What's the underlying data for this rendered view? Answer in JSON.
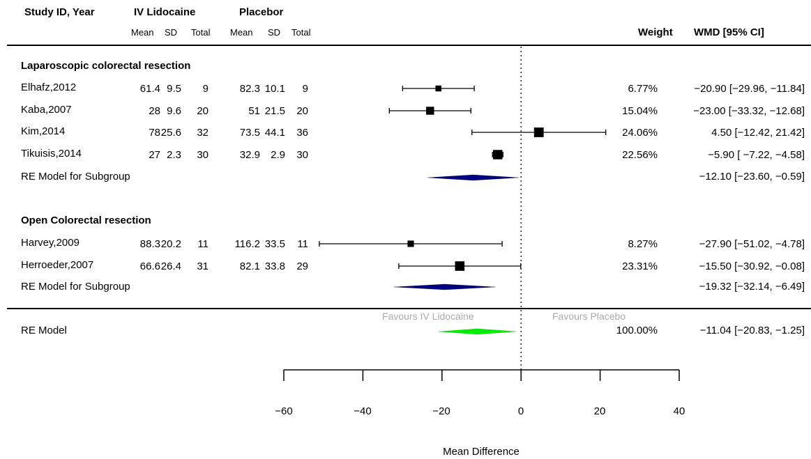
{
  "header": {
    "study_col": "Study ID, Year",
    "group1": "IV Lidocaine",
    "group2": "Placebor",
    "sub_mean": "Mean",
    "sub_sd": "SD",
    "sub_total": "Total",
    "weight_col": "Weight",
    "effect_col": "WMD [95% CI]"
  },
  "chart_data": {
    "type": "forest",
    "xlabel": "Mean Difference",
    "xlim": [
      -60,
      40
    ],
    "xticks": [
      "−60",
      "−40",
      "−20",
      "0",
      "20",
      "40"
    ],
    "reference_line": 0,
    "favours_left": "Favours IV Lidocaine",
    "favours_right": "Favours Placebo",
    "subgroups": [
      {
        "title": "Laparoscopic colorectal resection",
        "studies": [
          {
            "name": "Elhafz,2012",
            "m1": "61.4",
            "sd1": "9.5",
            "n1": "9",
            "m2": "82.3",
            "sd2": "10.1",
            "n2": "9",
            "weight": "6.77%",
            "ci_text": "−20.90 [−29.96, −11.84]",
            "est": -20.9,
            "lo": -29.96,
            "hi": -11.84,
            "w": 6.77
          },
          {
            "name": "Kaba,2007",
            "m1": "28",
            "sd1": "9.6",
            "n1": "20",
            "m2": "51",
            "sd2": "21.5",
            "n2": "20",
            "weight": "15.04%",
            "ci_text": "−23.00 [−33.32, −12.68]",
            "est": -23.0,
            "lo": -33.32,
            "hi": -12.68,
            "w": 15.04
          },
          {
            "name": "Kim,2014",
            "m1": "78",
            "sd1": "25.6",
            "n1": "32",
            "m2": "73.5",
            "sd2": "44.1",
            "n2": "36",
            "weight": "24.06%",
            "ci_text": "4.50 [−12.42, 21.42]",
            "est": 4.5,
            "lo": -12.42,
            "hi": 21.42,
            "w": 24.06
          },
          {
            "name": "Tikuisis,2014",
            "m1": "27",
            "sd1": "2.3",
            "n1": "30",
            "m2": "32.9",
            "sd2": "2.9",
            "n2": "30",
            "weight": "22.56%",
            "ci_text": "−5.90 [ −7.22, −4.58]",
            "est": -5.9,
            "lo": -7.22,
            "hi": -4.58,
            "w": 22.56
          }
        ],
        "summary": {
          "label": "RE Model for Subgroup",
          "ci_text": "−12.10 [−23.60, −0.59]",
          "est": -12.1,
          "lo": -23.6,
          "hi": -0.59,
          "color": "#000080"
        }
      },
      {
        "title": "Open Colorectal resection",
        "studies": [
          {
            "name": "Harvey,2009",
            "m1": "88.3",
            "sd1": "20.2",
            "n1": "11",
            "m2": "116.2",
            "sd2": "33.5",
            "n2": "11",
            "weight": "8.27%",
            "ci_text": "−27.90 [−51.02, −4.78]",
            "est": -27.9,
            "lo": -51.02,
            "hi": -4.78,
            "w": 8.27
          },
          {
            "name": "Herroeder,2007",
            "m1": "66.6",
            "sd1": "26.4",
            "n1": "31",
            "m2": "82.1",
            "sd2": "33.8",
            "n2": "29",
            "weight": "23.31%",
            "ci_text": "−15.50 [−30.92, −0.08]",
            "est": -15.5,
            "lo": -30.92,
            "hi": -0.08,
            "w": 23.31
          }
        ],
        "summary": {
          "label": "RE Model for Subgroup",
          "ci_text": "−19.32 [−32.14, −6.49]",
          "est": -19.32,
          "lo": -32.14,
          "hi": -6.49,
          "color": "#000080"
        }
      }
    ],
    "overall": {
      "label": "RE Model",
      "weight": "100.00%",
      "ci_text": "−11.04 [−20.83, −1.25]",
      "est": -11.04,
      "lo": -20.83,
      "hi": -1.25,
      "color": "#00ee00"
    }
  }
}
